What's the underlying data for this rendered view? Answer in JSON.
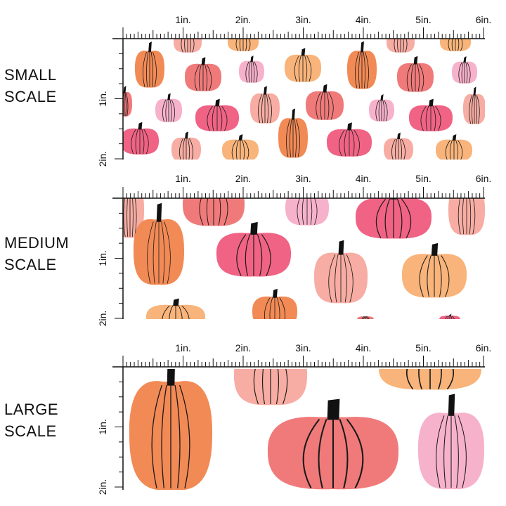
{
  "ruler": {
    "horizontal_labels": [
      "1in.",
      "2in.",
      "3in.",
      "4in.",
      "5in.",
      "6in."
    ],
    "vertical_labels": [
      "1in.",
      "2in."
    ]
  },
  "panels": [
    {
      "id": "small",
      "label_lines": [
        "SMALL",
        "SCALE"
      ]
    },
    {
      "id": "medium",
      "label_lines": [
        "MEDIUM",
        "SCALE"
      ]
    },
    {
      "id": "large",
      "label_lines": [
        "LARGE",
        "SCALE"
      ]
    }
  ],
  "colors": {
    "orange": "#f28a55",
    "coral": "#f07a7a",
    "pink": "#f06384",
    "light_pink": "#f7b2cb",
    "peach": "#f8b47a",
    "salmon": "#f7ada3",
    "stem": "#111111",
    "ruler": "#111111"
  }
}
